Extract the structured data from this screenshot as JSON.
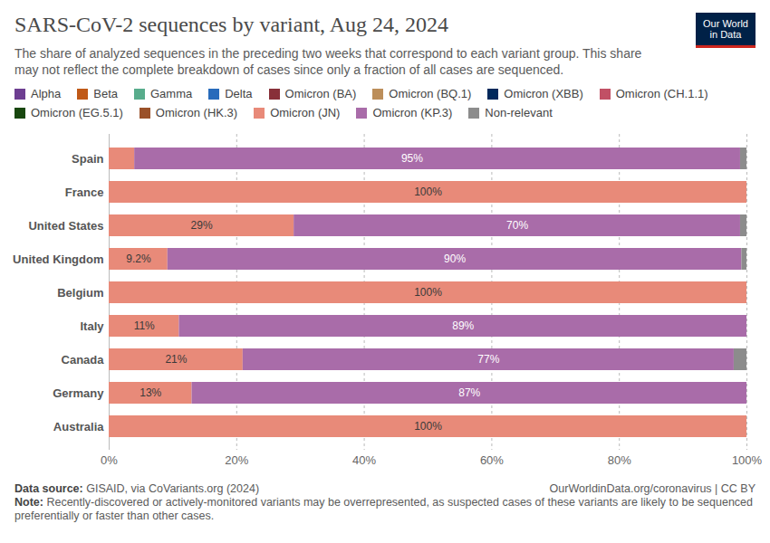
{
  "chart_data": {
    "type": "bar",
    "orientation": "horizontal",
    "stacked": true,
    "data_labels": true,
    "grid": true,
    "legend": "top",
    "title": "SARS-CoV-2 sequences by variant, Aug 24, 2024",
    "subtitle": "The share of analyzed sequences in the preceding two weeks that correspond to each variant group. This share may not reflect the complete breakdown of cases since only a fraction of all cases are sequenced.",
    "logo": [
      "Our World",
      "in Data"
    ],
    "source_label": "Data source:",
    "source": "GISAID, via CoVariants.org (2024)",
    "credit": "OurWorldinData.org/coronavirus | CC BY",
    "note_label": "Note:",
    "note": "Recently-discovered or actively-monitored variants may be overrepresented, as suspected cases of these variants are likely to be sequenced preferentially or faster than other cases.",
    "categories": [
      "Spain",
      "France",
      "United States",
      "United Kingdom",
      "Belgium",
      "Italy",
      "Canada",
      "Germany",
      "Australia"
    ],
    "series": [
      {
        "name": "Alpha",
        "color": "#6d3e91",
        "values": [
          0,
          0,
          0,
          0,
          0,
          0,
          0,
          0,
          0
        ]
      },
      {
        "name": "Beta",
        "color": "#c05917",
        "values": [
          0,
          0,
          0,
          0,
          0,
          0,
          0,
          0,
          0
        ]
      },
      {
        "name": "Gamma",
        "color": "#58ac8c",
        "values": [
          0,
          0,
          0,
          0,
          0,
          0,
          0,
          0,
          0
        ]
      },
      {
        "name": "Delta",
        "color": "#286bbb",
        "values": [
          0,
          0,
          0,
          0,
          0,
          0,
          0,
          0,
          0
        ]
      },
      {
        "name": "Omicron (BA)",
        "color": "#883039",
        "values": [
          0,
          0,
          0,
          0,
          0,
          0,
          0,
          0,
          0
        ]
      },
      {
        "name": "Omicron (BQ.1)",
        "color": "#bc8e5a",
        "values": [
          0,
          0,
          0,
          0,
          0,
          0,
          0,
          0,
          0
        ]
      },
      {
        "name": "Omicron (XBB)",
        "color": "#00295b",
        "values": [
          0,
          0,
          0,
          0,
          0,
          0,
          0,
          0,
          0
        ]
      },
      {
        "name": "Omicron (CH.1.1)",
        "color": "#c15065",
        "values": [
          0,
          0,
          0,
          0,
          0,
          0,
          0,
          0,
          0
        ]
      },
      {
        "name": "Omicron (EG.5.1)",
        "color": "#18470f",
        "values": [
          0,
          0,
          0,
          0,
          0,
          0,
          0,
          0,
          0
        ]
      },
      {
        "name": "Omicron (HK.3)",
        "color": "#9a5129",
        "values": [
          0,
          0,
          0,
          0,
          0,
          0,
          0,
          0,
          0
        ]
      },
      {
        "name": "Omicron (JN)",
        "color": "#e88a79",
        "values": [
          4,
          100,
          29,
          9.2,
          100,
          11,
          21,
          13,
          100
        ],
        "value_labels": [
          null,
          "100%",
          "29%",
          "9.2%",
          "100%",
          "11%",
          "21%",
          "13%",
          "100%"
        ]
      },
      {
        "name": "Omicron (KP.3)",
        "color": "#a96ca9",
        "values": [
          95,
          0,
          70,
          90,
          0,
          89,
          77,
          87,
          0
        ],
        "value_labels": [
          "95%",
          null,
          "70%",
          "90%",
          null,
          "89%",
          "77%",
          "87%",
          null
        ]
      },
      {
        "name": "Non-relevant",
        "color": "#8c8c8c",
        "values": [
          1,
          0,
          1,
          0.8,
          0,
          0,
          2,
          0,
          0
        ]
      }
    ],
    "xlim": [
      0,
      100
    ],
    "xticks": [
      {
        "value": 0,
        "label": "0%"
      },
      {
        "value": 20,
        "label": "20%"
      },
      {
        "value": 40,
        "label": "40%"
      },
      {
        "value": 60,
        "label": "60%"
      },
      {
        "value": 80,
        "label": "80%"
      },
      {
        "value": 100,
        "label": "100%"
      }
    ]
  }
}
